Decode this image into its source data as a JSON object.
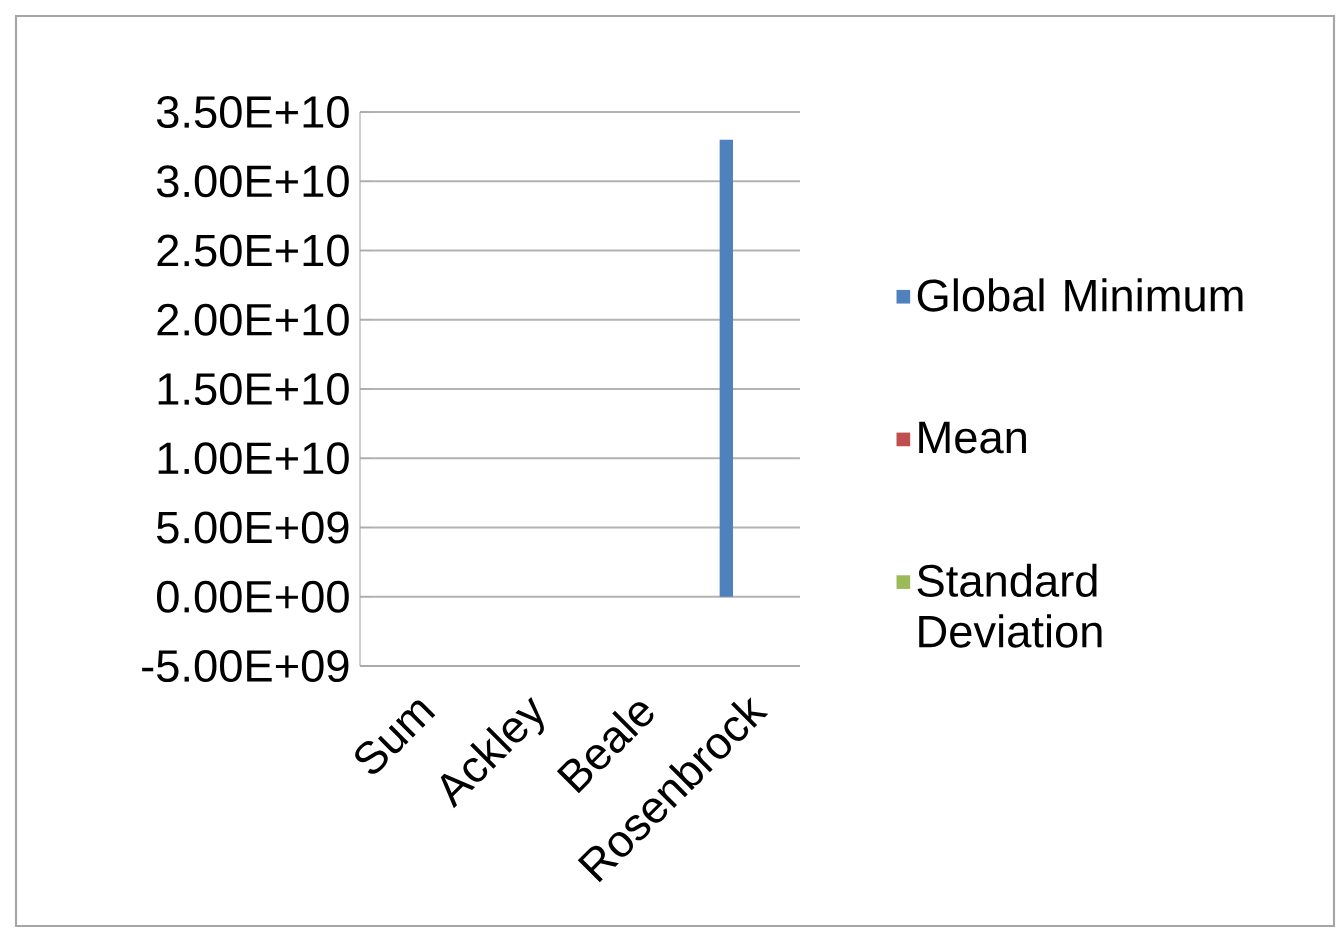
{
  "chart_data": {
    "type": "bar",
    "categories": [
      "Sum",
      "Ackley",
      "Beale",
      "Rosenbrock"
    ],
    "series": [
      {
        "name": "Global Minimum",
        "color": "#4f81bd",
        "values": [
          0,
          0,
          0,
          33000000000.0
        ]
      },
      {
        "name": "Mean",
        "color": "#c0504d",
        "values": [
          0,
          0,
          0,
          0
        ]
      },
      {
        "name": "Standard Deviation",
        "color": "#9bbb59",
        "values": [
          0,
          0,
          0,
          0
        ]
      }
    ],
    "ylim": [
      -5000000000.0,
      35000000000.0
    ],
    "yticks": [
      {
        "value": -5000000000.0,
        "label": "-5.00E+09"
      },
      {
        "value": 0,
        "label": "0.00E+00"
      },
      {
        "value": 5000000000.0,
        "label": "5.00E+09"
      },
      {
        "value": 10000000000.0,
        "label": "1.00E+10"
      },
      {
        "value": 15000000000.0,
        "label": "1.50E+10"
      },
      {
        "value": 20000000000.0,
        "label": "2.00E+10"
      },
      {
        "value": 25000000000.0,
        "label": "2.50E+10"
      },
      {
        "value": 30000000000.0,
        "label": "3.00E+10"
      },
      {
        "value": 35000000000.0,
        "label": "3.50E+10"
      }
    ],
    "grid": "y",
    "legend": "right"
  }
}
